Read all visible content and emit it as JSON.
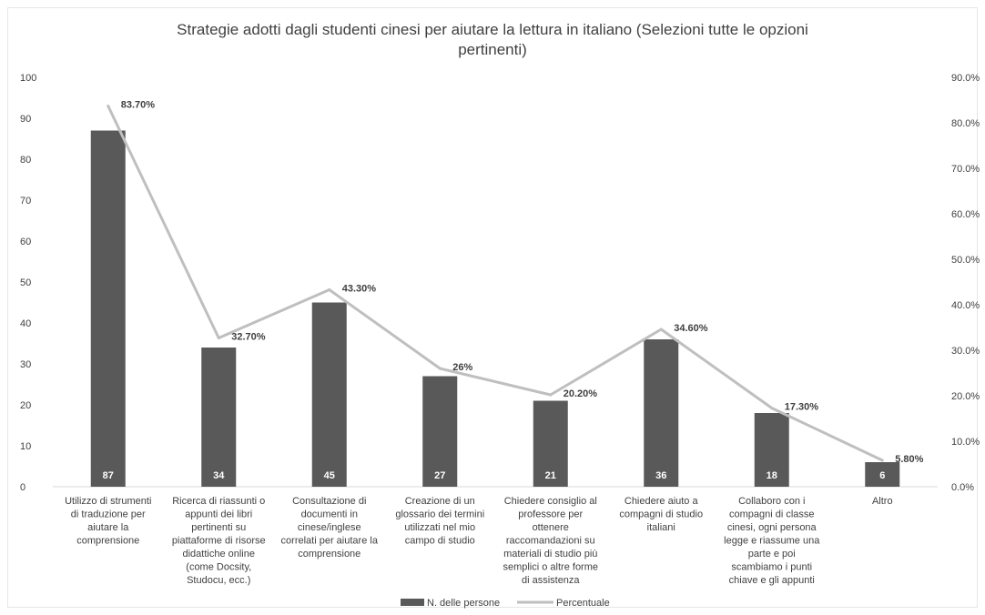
{
  "chart_data": {
    "type": "bar",
    "title_lines": [
      "Strategie adotti dagli studenti cinesi per aiutare la lettura in italiano (Selezioni tutte le opzioni",
      "pertinenti)"
    ],
    "categories": [
      [
        "Utilizzo di strumenti",
        "di traduzione per",
        "aiutare la",
        "comprensione"
      ],
      [
        "Ricerca di riassunti o",
        "appunti dei libri",
        "pertinenti su",
        "piattaforme di risorse",
        "didattiche online",
        "(come Docsity,",
        "Studocu, ecc.)"
      ],
      [
        "Consultazione di",
        "documenti in",
        "cinese/inglese",
        "correlati per aiutare la",
        "comprensione"
      ],
      [
        "Creazione di un",
        "glossario dei termini",
        "utilizzati nel mio",
        "campo di studio"
      ],
      [
        "Chiedere consiglio al",
        "professore per",
        "ottenere",
        "raccomandazioni su",
        "materiali di studio più",
        "semplici o altre forme",
        "di assistenza"
      ],
      [
        "Chiedere aiuto a",
        "compagni di studio",
        "italiani"
      ],
      [
        "Collaboro con i",
        "compagni di classe",
        "cinesi, ogni persona",
        "legge e riassume una",
        "parte e poi",
        "scambiamo i punti",
        "chiave e gli appunti"
      ],
      [
        "Altro"
      ]
    ],
    "series": [
      {
        "name": "N. delle persone",
        "type": "bar",
        "axis": "left",
        "color": "#595959",
        "values": [
          87,
          34,
          45,
          27,
          21,
          36,
          18,
          6
        ],
        "labels": [
          "87",
          "34",
          "45",
          "27",
          "21",
          "36",
          "18",
          "6"
        ]
      },
      {
        "name": "Percentuale",
        "type": "line",
        "axis": "right",
        "color": "#bfbfbf",
        "values": [
          83.7,
          32.7,
          43.3,
          26,
          20.2,
          34.6,
          17.3,
          5.8
        ],
        "labels": [
          "83.70%",
          "32.70%",
          "43.30%",
          "26%",
          "20.20%",
          "34.60%",
          "17.30%",
          "5.80%"
        ]
      }
    ],
    "y_left": {
      "min": 0,
      "max": 100,
      "ticks": [
        "0",
        "10",
        "20",
        "30",
        "40",
        "50",
        "60",
        "70",
        "80",
        "90",
        "100"
      ]
    },
    "y_right": {
      "min": 0,
      "max": 90,
      "ticks": [
        "0.0%",
        "10.0%",
        "20.0%",
        "30.0%",
        "40.0%",
        "50.0%",
        "60.0%",
        "70.0%",
        "80.0%",
        "90.0%"
      ]
    },
    "grid": false,
    "legend_position": "bottom"
  }
}
